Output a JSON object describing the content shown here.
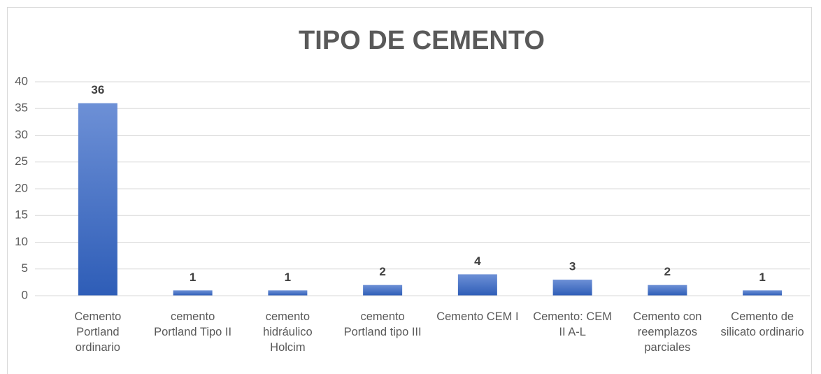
{
  "chart_data": {
    "type": "bar",
    "title": "TIPO DE CEMENTO",
    "categories": [
      "Cemento Portland ordinario",
      "cemento Portland Tipo II",
      "cemento hidráulico Holcim",
      "cemento Portland tipo III",
      "Cemento CEM I",
      "Cemento: CEM II A-L",
      "Cemento con reemplazos parciales",
      "Cemento de silicato ordinario"
    ],
    "values": [
      36,
      1,
      1,
      2,
      4,
      3,
      2,
      1
    ],
    "color": "#4472c4",
    "ylim": [
      0,
      40
    ],
    "yticks": [
      0,
      5,
      10,
      15,
      20,
      25,
      30,
      35,
      40
    ],
    "grid": true
  }
}
